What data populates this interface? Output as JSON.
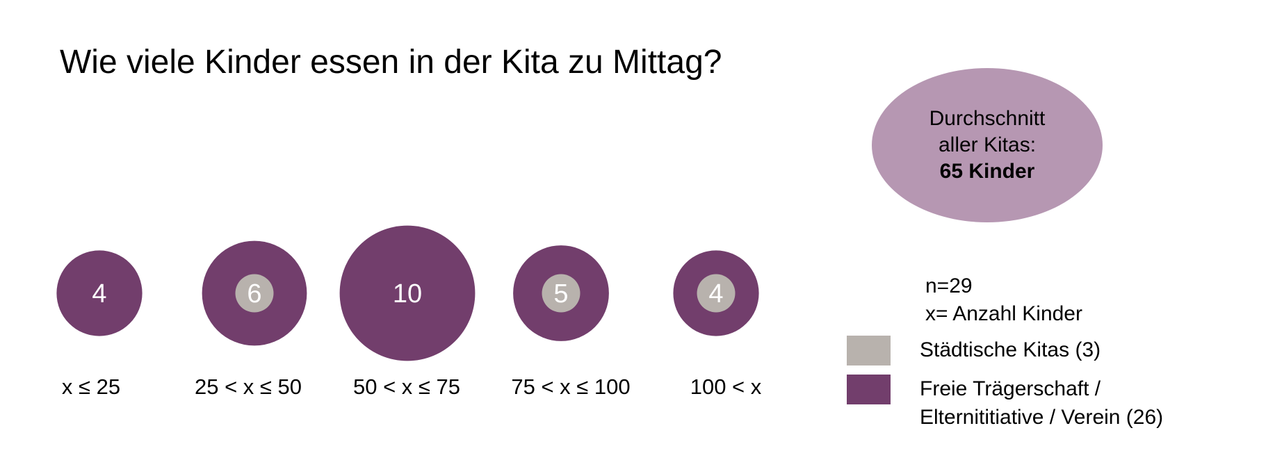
{
  "chart_data": {
    "type": "bubble",
    "title": "Wie viele Kinder essen in der Kita zu Mittag?",
    "categories": [
      "x ≤ 25",
      "25 < x ≤ 50",
      "50 < x ≤ 75",
      "75 < x ≤ 100",
      "100 < x"
    ],
    "series": [
      {
        "name": "Städtische Kitas (3)",
        "values": [
          0,
          1,
          0,
          1,
          1
        ],
        "color": "#b8b2ad"
      },
      {
        "name": "Freie Trägerschaft / Elternititiative / Verein (26)",
        "values": [
          4,
          5,
          10,
          4,
          3
        ],
        "color": "#723e6c"
      }
    ],
    "data_labels": [
      "4",
      "6",
      "10",
      "5",
      "4"
    ],
    "totals": [
      4,
      6,
      10,
      5,
      4
    ]
  },
  "average_box": {
    "line1": "Durchschnitt",
    "line2": "aller Kitas:",
    "value": "65 Kinder",
    "color": "#b697b2"
  },
  "notes": {
    "n": "n=29",
    "x_def": "x= Anzahl Kinder"
  },
  "legend": [
    {
      "label_lines": [
        "Städtische Kitas (3)"
      ],
      "color": "#b8b2ad"
    },
    {
      "label_lines": [
        "Freie Trägerschaft /",
        "Elternititiative / Verein (26)"
      ],
      "color": "#723e6c"
    }
  ]
}
